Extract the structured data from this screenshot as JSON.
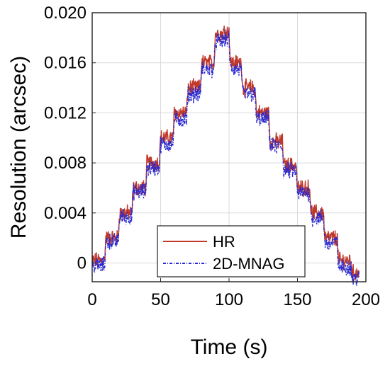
{
  "chart_data": {
    "type": "line",
    "xlabel": "Time (s)",
    "ylabel": "Resolution (arcsec)",
    "xlim": [
      0,
      200
    ],
    "ylim": [
      -0.0015,
      0.02
    ],
    "xticks": [
      0,
      50,
      100,
      150,
      200
    ],
    "xtick_labels": [
      "0",
      "50",
      "100",
      "150",
      "200"
    ],
    "yticks": [
      0,
      0.004,
      0.008,
      0.012,
      0.016,
      0.02
    ],
    "ytick_labels": [
      "0",
      "0.004",
      "0.008",
      "0.012",
      "0.016",
      "0.020"
    ],
    "grid": true,
    "legend_position": "bottom-center",
    "series": [
      {
        "name": "HR",
        "color": "#c0392b",
        "style": "solid",
        "x": [
          0,
          9,
          10,
          19,
          20,
          29,
          30,
          39,
          40,
          49,
          50,
          59,
          60,
          69,
          70,
          79,
          80,
          89,
          90,
          95,
          96,
          100,
          101,
          109,
          110,
          119,
          120,
          129,
          130,
          139,
          140,
          149,
          150,
          159,
          160,
          169,
          170,
          179,
          180,
          189,
          190,
          195
        ],
        "y": [
          0.0002,
          0.0002,
          0.002,
          0.002,
          0.004,
          0.004,
          0.006,
          0.006,
          0.008,
          0.008,
          0.01,
          0.01,
          0.012,
          0.012,
          0.014,
          0.014,
          0.016,
          0.016,
          0.0183,
          0.0183,
          0.0185,
          0.0185,
          0.016,
          0.016,
          0.014,
          0.014,
          0.012,
          0.012,
          0.0097,
          0.0097,
          0.0078,
          0.0078,
          0.006,
          0.006,
          0.004,
          0.004,
          0.002,
          0.002,
          0.0002,
          0.0002,
          -0.0008,
          -0.0008
        ]
      },
      {
        "name": "2D-MNAG",
        "color": "#2a2ad0",
        "style": "dashdot",
        "x": [
          0,
          9,
          10,
          19,
          20,
          29,
          30,
          39,
          40,
          49,
          50,
          59,
          60,
          69,
          70,
          79,
          80,
          89,
          90,
          95,
          96,
          100,
          101,
          109,
          110,
          119,
          120,
          129,
          130,
          139,
          140,
          149,
          150,
          159,
          160,
          169,
          170,
          179,
          180,
          189,
          190,
          195
        ],
        "y": [
          -0.0002,
          -0.0002,
          0.0017,
          0.0017,
          0.0037,
          0.0037,
          0.0057,
          0.0057,
          0.0076,
          0.0076,
          0.0095,
          0.0095,
          0.0115,
          0.0115,
          0.0135,
          0.0135,
          0.0155,
          0.0155,
          0.0177,
          0.0177,
          0.0179,
          0.0179,
          0.0155,
          0.0155,
          0.0135,
          0.0135,
          0.0115,
          0.0115,
          0.0093,
          0.0093,
          0.0074,
          0.0074,
          0.0056,
          0.0056,
          0.0036,
          0.0036,
          0.0016,
          0.0016,
          -0.0003,
          -0.0003,
          -0.0012,
          -0.0012
        ]
      }
    ]
  }
}
